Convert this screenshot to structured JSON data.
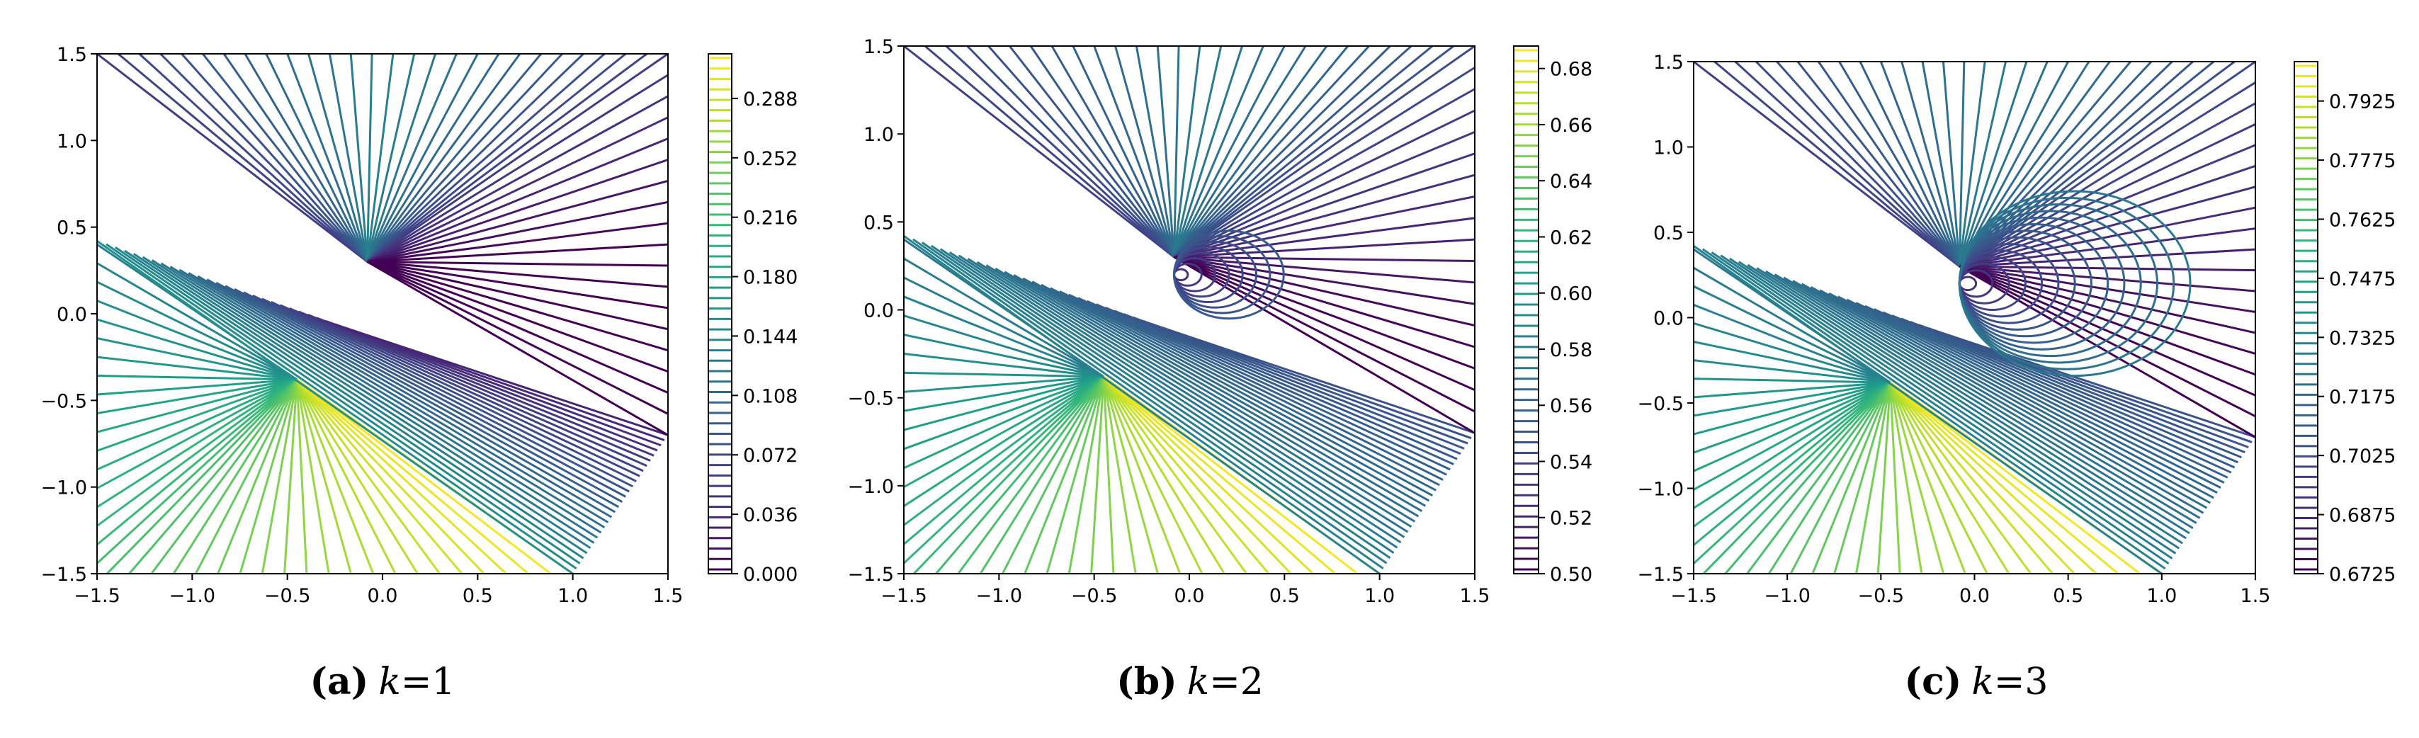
{
  "chart_data": [
    {
      "type": "contour",
      "caption_label": "(a)",
      "caption_var": "k",
      "caption_eq": "=1",
      "xlim": [
        -1.5,
        1.5
      ],
      "ylim": [
        -1.5,
        1.5
      ],
      "xticks": [
        "−1.5",
        "−1.0",
        "−0.5",
        "0.0",
        "0.5",
        "1.0",
        "1.5"
      ],
      "yticks": [
        "−1.5",
        "−1.0",
        "−0.5",
        "0.0",
        "0.5",
        "1.0",
        "1.5"
      ],
      "colorbar": {
        "min": 0.0,
        "max": 0.315,
        "ticks": [
          "0.000",
          "0.036",
          "0.072",
          "0.108",
          "0.144",
          "0.180",
          "0.216",
          "0.252",
          "0.288"
        ],
        "colormap": "viridis"
      }
    },
    {
      "type": "contour",
      "caption_label": "(b)",
      "caption_var": "k",
      "caption_eq": "=2",
      "xlim": [
        -1.5,
        1.5
      ],
      "ylim": [
        -1.5,
        1.5
      ],
      "xticks": [
        "−1.5",
        "−1.0",
        "−0.5",
        "0.0",
        "0.5",
        "1.0",
        "1.5"
      ],
      "yticks": [
        "−1.5",
        "−1.0",
        "−0.5",
        "0.0",
        "0.5",
        "1.0",
        "1.5"
      ],
      "colorbar": {
        "min": 0.5,
        "max": 0.688,
        "ticks": [
          "0.50",
          "0.52",
          "0.54",
          "0.56",
          "0.58",
          "0.60",
          "0.62",
          "0.64",
          "0.66",
          "0.68"
        ],
        "colormap": "viridis"
      }
    },
    {
      "type": "contour",
      "caption_label": "(c)",
      "caption_var": "k",
      "caption_eq": "=3",
      "xlim": [
        -1.5,
        1.5
      ],
      "ylim": [
        -1.5,
        1.5
      ],
      "xticks": [
        "−1.5",
        "−1.0",
        "−0.5",
        "0.0",
        "0.5",
        "1.0",
        "1.5"
      ],
      "yticks": [
        "−1.5",
        "−1.0",
        "−0.5",
        "0.0",
        "0.5",
        "1.0",
        "1.5"
      ],
      "colorbar": {
        "min": 0.6725,
        "max": 0.8025,
        "ticks": [
          "0.6725",
          "0.6875",
          "0.7025",
          "0.7175",
          "0.7325",
          "0.7475",
          "0.7625",
          "0.7775",
          "0.7925"
        ],
        "colormap": "viridis"
      }
    }
  ]
}
